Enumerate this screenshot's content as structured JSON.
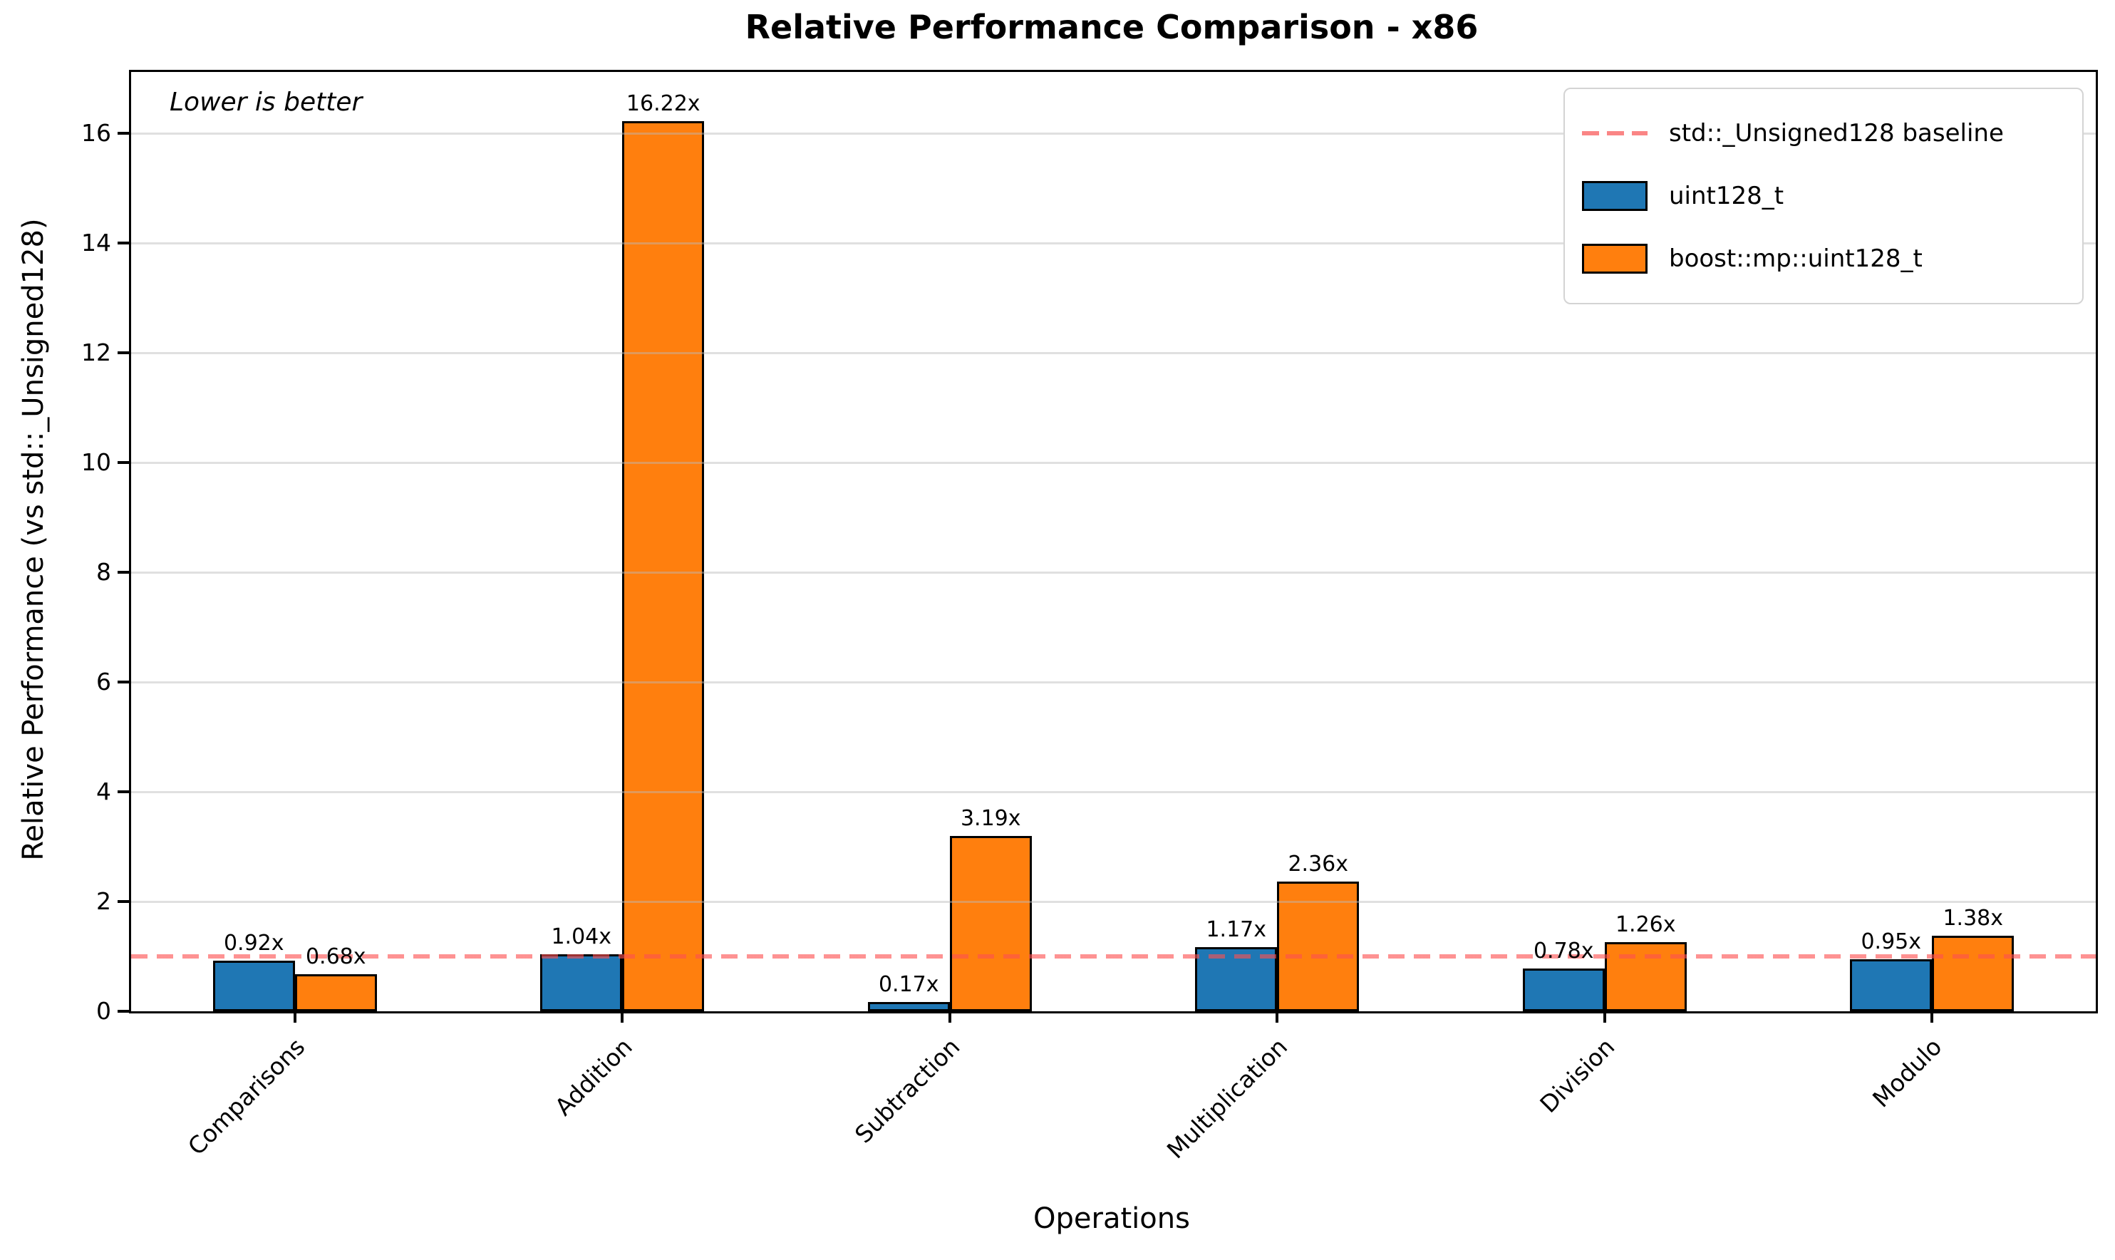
{
  "chart_data": {
    "type": "bar",
    "title": "Relative Performance Comparison - x86",
    "xlabel": "Operations",
    "ylabel": "Relative Performance (vs std::_Unsigned128)",
    "annotation": "Lower is better",
    "categories": [
      "Comparisons",
      "Addition",
      "Subtraction",
      "Multiplication",
      "Division",
      "Modulo"
    ],
    "series": [
      {
        "name": "uint128_t",
        "color": "#1f77b4",
        "values": [
          0.92,
          1.04,
          0.17,
          1.17,
          0.78,
          0.95
        ],
        "labels": [
          "0.92x",
          "1.04x",
          "0.17x",
          "1.17x",
          "0.78x",
          "0.95x"
        ]
      },
      {
        "name": "boost::mp::uint128_t",
        "color": "#ff7f0e",
        "values": [
          0.68,
          16.22,
          3.19,
          2.36,
          1.26,
          1.38
        ],
        "labels": [
          "0.68x",
          "16.22x",
          "3.19x",
          "2.36x",
          "1.26x",
          "1.38x"
        ]
      }
    ],
    "baseline": {
      "value": 1,
      "label": "std::_Unsigned128 baseline",
      "color": "#fa8585"
    },
    "ylim": [
      0,
      17.12
    ],
    "yticks": [
      0,
      2,
      4,
      6,
      8,
      10,
      12,
      14,
      16
    ],
    "grid": true,
    "legend_position": "upper right"
  }
}
